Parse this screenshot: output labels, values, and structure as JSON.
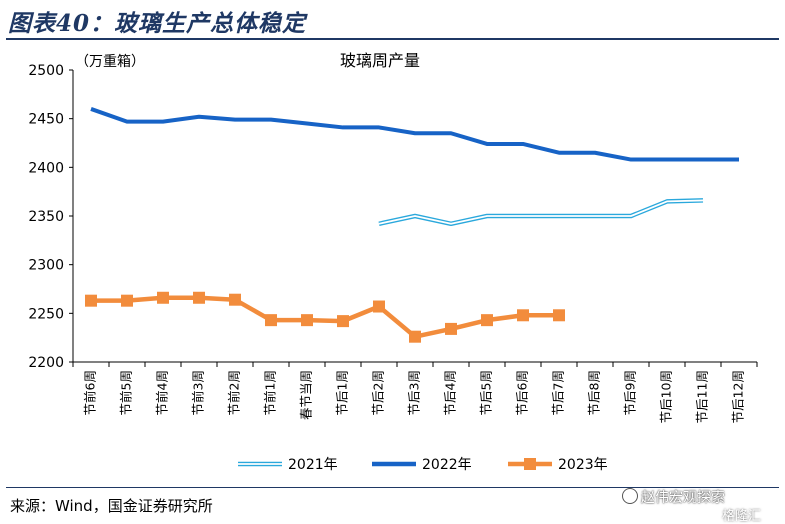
{
  "figure": {
    "title": "图表40：玻璃生产总体稳定",
    "source": "来源：Wind，国金证券研究所",
    "watermark": "赵伟宏观探索",
    "watermark_brand": "格隆汇"
  },
  "chart_data": {
    "type": "line",
    "title": "玻璃周产量",
    "unit_label": "（万重箱）",
    "xlabel": "",
    "ylabel": "",
    "ylim": [
      2200,
      2500
    ],
    "yticks": [
      2200,
      2250,
      2300,
      2350,
      2400,
      2450,
      2500
    ],
    "grid": false,
    "legend_position": "bottom",
    "categories": [
      "节前6周",
      "节前5周",
      "节前4周",
      "节前3周",
      "节前2周",
      "节前1周",
      "春节当周",
      "节后1周",
      "节后2周",
      "节后3周",
      "节后4周",
      "节后5周",
      "节后6周",
      "节后7周",
      "节后8周",
      "节后9周",
      "节后10周",
      "节后11周",
      "节后12周"
    ],
    "series": [
      {
        "name": "2021年",
        "style": "double",
        "color": "#2aa8dc",
        "values": [
          null,
          null,
          null,
          null,
          null,
          null,
          null,
          null,
          2342,
          2350,
          2342,
          2350,
          2350,
          2350,
          2350,
          2350,
          2365,
          2366,
          null
        ]
      },
      {
        "name": "2022年",
        "style": "solid",
        "color": "#1763c6",
        "values": [
          2460,
          2447,
          2447,
          2452,
          2449,
          2449,
          2445,
          2441,
          2441,
          2435,
          2435,
          2424,
          2424,
          2415,
          2415,
          2408,
          2408,
          2408,
          2408
        ]
      },
      {
        "name": "2023年",
        "style": "marker",
        "color": "#f28c3c",
        "values": [
          2263,
          2263,
          2266,
          2266,
          2264,
          2243,
          2243,
          2242,
          2257,
          2226,
          2234,
          2243,
          2248,
          2248,
          null,
          null,
          null,
          null,
          null
        ]
      }
    ]
  }
}
